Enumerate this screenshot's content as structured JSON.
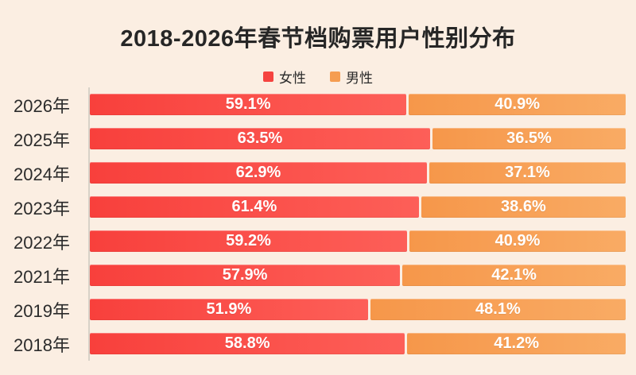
{
  "title": "2018-2026年春节档购票用户性别分布",
  "legend": [
    {
      "label": "女性",
      "color": "#f5433f"
    },
    {
      "label": "男性",
      "color": "#f59d51"
    }
  ],
  "chart_data": {
    "type": "bar",
    "orientation": "horizontal-stacked",
    "title": "2018-2026年春节档购票用户性别分布",
    "categories": [
      "2026年",
      "2025年",
      "2024年",
      "2023年",
      "2022年",
      "2021年",
      "2019年",
      "2018年"
    ],
    "series": [
      {
        "name": "女性",
        "values": [
          59.1,
          63.5,
          62.9,
          61.4,
          59.2,
          57.9,
          51.9,
          58.8
        ],
        "color_start": "#f8403c",
        "color_end": "#fd5f58"
      },
      {
        "name": "男性",
        "values": [
          40.9,
          36.5,
          37.1,
          38.6,
          40.9,
          42.1,
          48.1,
          41.2
        ],
        "color_start": "#f6974a",
        "color_end": "#f9ab64"
      }
    ],
    "value_suffix": "%",
    "xlim": [
      0,
      100
    ],
    "value_labels": "white, bold, centered in each segment",
    "legend_position": "top-center",
    "grid": false
  },
  "colors": {
    "background": "#fbeee2",
    "axis_line": "#d8d2c8",
    "title_text": "#262626",
    "category_text": "#2b2b2b",
    "value_text": "#ffffff",
    "segment_gap": "#fbeee2"
  }
}
